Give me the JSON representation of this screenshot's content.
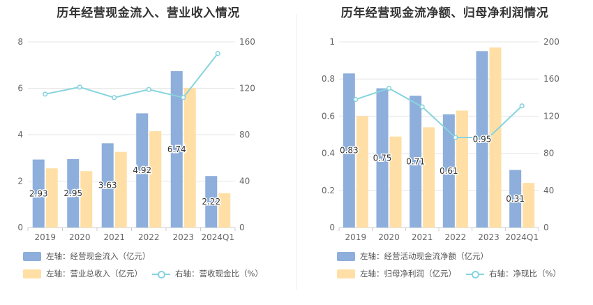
{
  "chart_data": [
    {
      "type": "bar",
      "title": "历年经营现金流入、营业收入情况",
      "categories": [
        "2019",
        "2020",
        "2021",
        "2022",
        "2023",
        "2024Q1"
      ],
      "series": [
        {
          "name": "左轴：经营现金流入（亿元）",
          "axis": "left",
          "kind": "bar",
          "color": "#8eaedb",
          "values": [
            2.93,
            2.95,
            3.63,
            4.92,
            6.74,
            2.22
          ],
          "labels": [
            "2.93",
            "2.95",
            "3.63",
            "4.92",
            "6.74",
            "2.22"
          ]
        },
        {
          "name": "左轴：营业总收入（亿元）",
          "axis": "left",
          "kind": "bar",
          "color": "#ffdfa6",
          "values": [
            2.55,
            2.43,
            3.26,
            4.15,
            6.02,
            1.48
          ]
        },
        {
          "name": "右轴：营收现金比（%）",
          "axis": "right",
          "kind": "line",
          "color": "#87d4de",
          "values": [
            115,
            121,
            112,
            119,
            112,
            150
          ]
        }
      ],
      "left_axis": {
        "min": 0,
        "max": 8,
        "ticks": [
          "0",
          "2",
          "4",
          "6",
          "8"
        ]
      },
      "right_axis": {
        "min": 0,
        "max": 160,
        "ticks": [
          "0",
          "40",
          "80",
          "120",
          "160"
        ]
      },
      "grid": true,
      "legend_position": "bottom"
    },
    {
      "type": "bar",
      "title": "历年经营现金流净额、归母净利润情况",
      "categories": [
        "2019",
        "2020",
        "2021",
        "2022",
        "2023",
        "2024Q1"
      ],
      "series": [
        {
          "name": "左轴：经营活动现金流净额（亿元）",
          "axis": "left",
          "kind": "bar",
          "color": "#8eaedb",
          "values": [
            0.83,
            0.75,
            0.71,
            0.61,
            0.95,
            0.31
          ],
          "labels": [
            "0.83",
            "0.75",
            "0.71",
            "0.61",
            "0.95",
            "0.31"
          ]
        },
        {
          "name": "左轴：归母净利润（亿元）",
          "axis": "left",
          "kind": "bar",
          "color": "#ffdfa6",
          "values": [
            0.6,
            0.49,
            0.54,
            0.63,
            0.97,
            0.24
          ]
        },
        {
          "name": "右轴：净现比（%）",
          "axis": "right",
          "kind": "line",
          "color": "#87d4de",
          "values": [
            138,
            150,
            130,
            97,
            97,
            131
          ]
        }
      ],
      "left_axis": {
        "min": 0,
        "max": 1,
        "ticks": [
          "0",
          "0.2",
          "0.4",
          "0.6",
          "0.8",
          "1"
        ]
      },
      "right_axis": {
        "min": 0,
        "max": 200,
        "ticks": [
          "0",
          "40",
          "80",
          "120",
          "160",
          "200"
        ]
      },
      "grid": true,
      "legend_position": "bottom"
    }
  ]
}
